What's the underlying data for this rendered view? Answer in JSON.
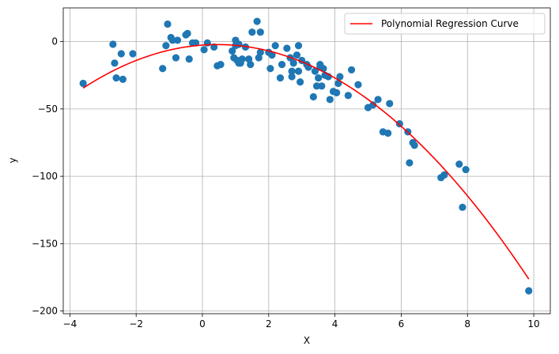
{
  "chart_data": {
    "type": "scatter",
    "xlabel": "X",
    "ylabel": "y",
    "xlim": [
      -4.2,
      10.5
    ],
    "ylim": [
      -202,
      25
    ],
    "xticks": [
      -4,
      -2,
      0,
      2,
      4,
      6,
      8,
      10
    ],
    "yticks": [
      0,
      -50,
      -100,
      -150,
      -200
    ],
    "grid": true,
    "legend_position": "top-right",
    "series": [
      {
        "kind": "scatter",
        "color": "#1f77b4",
        "x": [
          -3.6,
          -2.7,
          -2.65,
          -2.6,
          -2.45,
          -2.4,
          -2.1,
          -1.2,
          -1.1,
          -1.05,
          -0.95,
          -0.9,
          -0.8,
          -0.75,
          -0.5,
          -0.45,
          -0.4,
          -0.3,
          -0.2,
          0.05,
          0.15,
          0.35,
          0.45,
          0.55,
          0.9,
          0.95,
          1.0,
          1.0,
          1.05,
          1.1,
          1.1,
          1.15,
          1.2,
          1.3,
          1.4,
          1.45,
          1.5,
          1.65,
          1.7,
          1.75,
          1.75,
          2.0,
          2.05,
          2.1,
          2.2,
          2.35,
          2.4,
          2.55,
          2.65,
          2.7,
          2.7,
          2.75,
          2.85,
          2.9,
          2.9,
          2.95,
          3.0,
          3.15,
          3.2,
          3.35,
          3.4,
          3.45,
          3.5,
          3.55,
          3.55,
          3.6,
          3.65,
          3.7,
          3.8,
          3.85,
          3.95,
          4.05,
          4.1,
          4.15,
          4.4,
          4.5,
          4.7,
          5.0,
          5.15,
          5.3,
          5.45,
          5.6,
          5.65,
          5.95,
          6.2,
          6.25,
          6.35,
          6.4,
          7.2,
          7.3,
          7.75,
          7.85,
          7.95,
          9.85
        ],
        "y": [
          -31,
          -2,
          -16,
          -27,
          -9,
          -28,
          -9,
          -20,
          -3,
          13,
          3,
          1,
          -12,
          1,
          5,
          6,
          -13,
          -1,
          -1,
          -6,
          -1,
          -4,
          -18,
          -17,
          -7,
          -12,
          1,
          -3,
          -14,
          -16,
          -2,
          -16,
          -13,
          -4,
          -13,
          -17,
          7,
          15,
          -12,
          -8,
          7,
          -8,
          -20,
          -10,
          -3,
          -27,
          -17,
          -5,
          -12,
          -22,
          -26,
          -16,
          -10,
          -22,
          -3,
          -30,
          -14,
          -17,
          -19,
          -41,
          -22,
          -33,
          -27,
          -17,
          -19,
          -33,
          -20,
          -25,
          -26,
          -43,
          -37,
          -38,
          -31,
          -26,
          -40,
          -21,
          -32,
          -49,
          -47,
          -43,
          -67,
          -68,
          -46,
          -61,
          -67,
          -90,
          -75,
          -77,
          -101,
          -99,
          -91,
          -123,
          -95,
          -185
        ]
      },
      {
        "kind": "line",
        "name": "Polynomial Regression Curve",
        "color": "#ff0000",
        "poly": {
          "x0": 0.45,
          "y0": -2.2,
          "a": -1.97
        },
        "x_range": [
          -3.6,
          9.85
        ]
      }
    ]
  }
}
